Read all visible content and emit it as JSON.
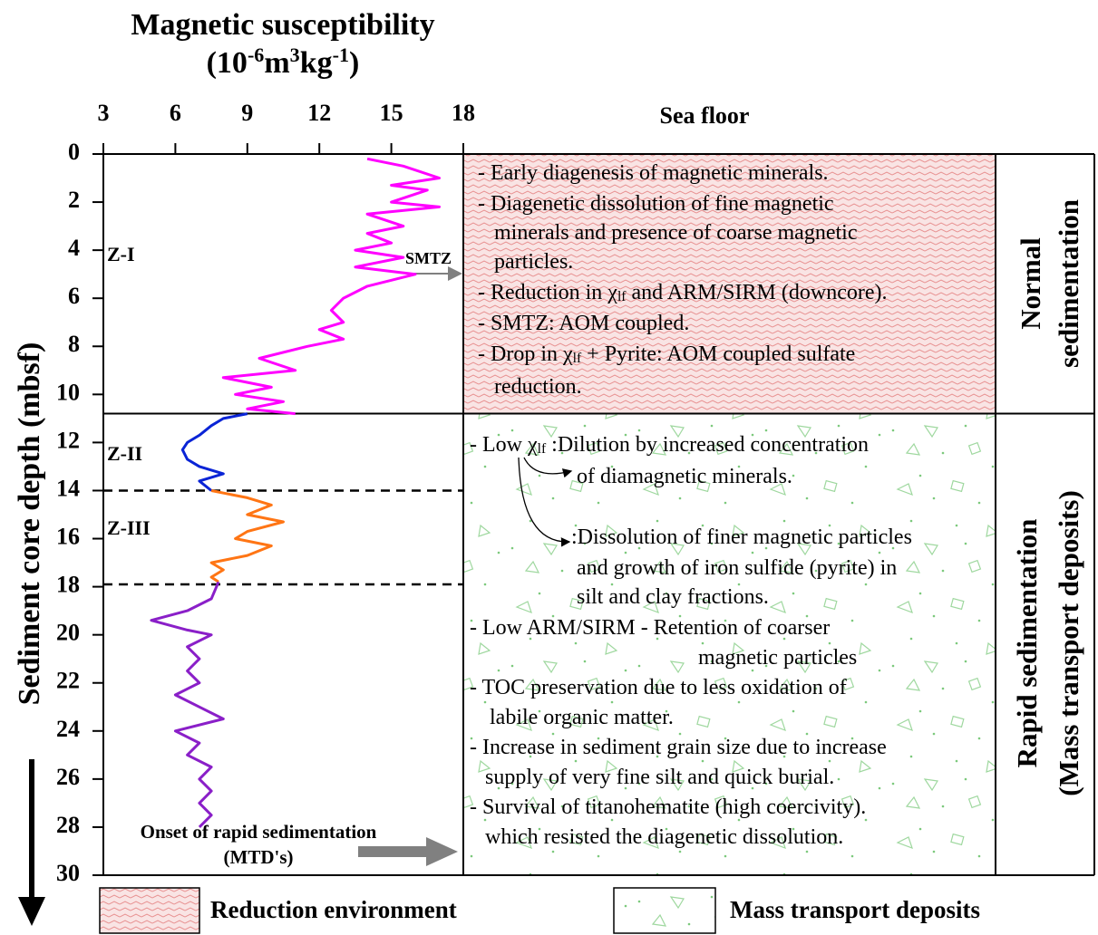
{
  "chart_data": {
    "type": "line",
    "title": "Magnetic susceptibility",
    "unit": [
      "(10",
      "-6",
      "m",
      "3",
      "kg",
      "-1",
      ")"
    ],
    "y_label": "Sediment core depth (mbsf)",
    "xlim": [
      3,
      18
    ],
    "xticks": [
      3,
      6,
      9,
      12,
      15,
      18
    ],
    "ylim": [
      0,
      30
    ],
    "yticks": [
      0,
      2,
      4,
      6,
      8,
      10,
      12,
      14,
      16,
      18,
      20,
      22,
      24,
      26,
      28,
      30
    ],
    "series": [
      {
        "name": "Z-I",
        "color": "#ff00ff",
        "depth": [
          0.2,
          0.5,
          1,
          1.3,
          1.5,
          2,
          2.2,
          2.5,
          3,
          3.3,
          3.7,
          4,
          4.3,
          4.7,
          5,
          5.5,
          6,
          6.5,
          7,
          7.3,
          7.7,
          8,
          8.5,
          9,
          9.3,
          9.7,
          10,
          10.3,
          10.6,
          10.8
        ],
        "values": [
          14,
          15.5,
          17,
          15,
          16.5,
          15,
          17,
          14,
          15.5,
          14,
          15,
          13.5,
          15.5,
          13.5,
          16,
          14,
          13,
          12.5,
          13,
          12,
          13,
          11.5,
          9.5,
          11,
          8,
          10,
          8.5,
          10.5,
          9,
          11
        ]
      },
      {
        "name": "Z-II",
        "color": "#0a24d6",
        "depth": [
          10.8,
          11,
          11.3,
          11.7,
          12,
          12.3,
          12.7,
          13,
          13.3,
          13.6,
          14
        ],
        "values": [
          9,
          8,
          7.5,
          7,
          6.5,
          6.3,
          6.5,
          7,
          8,
          7,
          7.5
        ]
      },
      {
        "name": "Z-III",
        "color": "#ff7514",
        "depth": [
          14,
          14.3,
          14.6,
          15,
          15.3,
          15.7,
          16,
          16.3,
          16.7,
          17,
          17.3,
          17.6,
          17.8
        ],
        "values": [
          7.5,
          9,
          10,
          9,
          10.5,
          9,
          8.5,
          10,
          9,
          7.5,
          8,
          7.5,
          7.8
        ]
      },
      {
        "color": "#8a1fc8",
        "depth": [
          17.8,
          18.5,
          19,
          19.4,
          19.8,
          20,
          20.5,
          21,
          21.5,
          22,
          22.5,
          23,
          23.5,
          24,
          24.5,
          25,
          25.5,
          26,
          26.5,
          27,
          27.5,
          28
        ],
        "values": [
          7.8,
          7.5,
          6.5,
          5,
          6.5,
          7.5,
          6.5,
          7,
          6.5,
          7,
          6,
          7,
          8,
          6,
          7,
          6.5,
          7.5,
          7,
          7.5,
          7,
          7.5,
          7
        ]
      }
    ],
    "panel_boundary": 10.8,
    "dashed_lines": [
      14,
      17.9
    ],
    "smtz": "SMTZ",
    "onset": [
      "Onset of rapid sedimentation",
      "(MTD's)"
    ],
    "sea_floor": "Sea floor"
  },
  "panels": [
    {
      "title": [
        "Normal",
        "sedimentation"
      ],
      "notes": [
        [
          "- Early diagenesis of magnetic minerals."
        ],
        [
          "- Diagenetic dissolution of fine magnetic"
        ],
        [
          "minerals and presence of coarse magnetic"
        ],
        [
          "particles."
        ],
        [
          "- Reduction in χ",
          "lf",
          " and ARM/SIRM (downcore)."
        ],
        [
          "- SMTZ: AOM coupled."
        ],
        [
          "- Drop in χ",
          "lf",
          " + Pyrite: AOM coupled sulfate"
        ],
        [
          "reduction."
        ]
      ]
    },
    {
      "title": [
        "Rapid sedimentation",
        "(Mass transport deposits)"
      ],
      "notes": [
        [
          "- Low χ",
          "lf",
          " :Dilution by increased concentration"
        ],
        [
          "of diamagnetic minerals."
        ],
        [
          ":Dissolution of finer magnetic particles"
        ],
        [
          "and growth of iron sulfide (pyrite) in"
        ],
        [
          "silt and clay fractions."
        ],
        [
          "- Low ARM/SIRM - Retention of coarser"
        ],
        [
          "magnetic particles"
        ],
        [
          "- TOC preservation due to less oxidation of"
        ],
        [
          "labile organic matter."
        ],
        [
          "- Increase in sediment grain size due to increase"
        ],
        [
          "supply of very fine silt and quick burial."
        ],
        [
          "- Survival of  titanohematite (high coercivity)."
        ],
        [
          "which resisted the diagenetic dissolution."
        ]
      ]
    }
  ],
  "legend": [
    "Reduction environment",
    "Mass transport deposits"
  ]
}
